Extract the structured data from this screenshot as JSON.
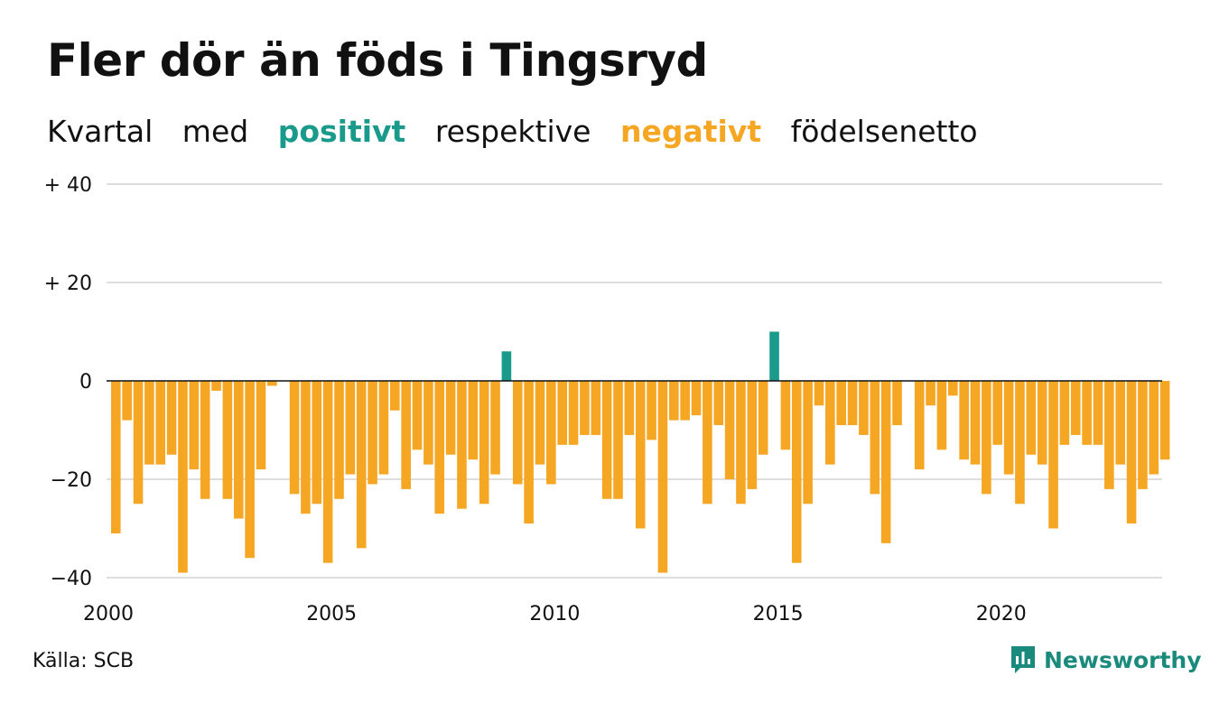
{
  "title": "Fler dör än föds i Tingsryd",
  "subtitle": {
    "w1": "Kvartal",
    "w2": "med",
    "positive": "positivt",
    "w4": "respektive",
    "negative": "negativt",
    "w6": "födelsenetto"
  },
  "source": "Källa: SCB",
  "brand": "Newsworthy",
  "colors": {
    "positive": "#1a9a8a",
    "negative": "#f5a623",
    "grid": "#dddddd",
    "zero": "#111111",
    "brand": "#1a8a7c"
  },
  "chart_data": {
    "type": "bar",
    "title": "Fler dör än föds i Tingsryd",
    "xlabel": "",
    "ylabel": "",
    "ylim": [
      -40,
      40
    ],
    "y_ticks": [
      {
        "value": 40,
        "label": "+ 40"
      },
      {
        "value": 20,
        "label": "+ 20"
      },
      {
        "value": 0,
        "label": "0"
      },
      {
        "value": -20,
        "label": "−20"
      },
      {
        "value": -40,
        "label": "−40"
      }
    ],
    "x_ticks": [
      {
        "value": 2000,
        "label": "2000"
      },
      {
        "value": 2005,
        "label": "2005"
      },
      {
        "value": 2010,
        "label": "2010"
      },
      {
        "value": 2015,
        "label": "2015"
      },
      {
        "value": 2020,
        "label": "2020"
      }
    ],
    "grid": true,
    "start_quarter": "2000K1",
    "values": [
      -31,
      -8,
      -25,
      -17,
      -17,
      -15,
      -39,
      -18,
      -24,
      -2,
      -24,
      -28,
      -36,
      -18,
      -1,
      0,
      -23,
      -27,
      -25,
      -37,
      -24,
      -19,
      -34,
      -21,
      -19,
      -6,
      -22,
      -14,
      -17,
      -27,
      -15,
      -26,
      -16,
      -25,
      -19,
      6,
      -21,
      -29,
      -17,
      -21,
      -13,
      -13,
      -11,
      -11,
      -24,
      -24,
      -11,
      -30,
      -12,
      -39,
      -8,
      -8,
      -7,
      -25,
      -9,
      -20,
      -25,
      -22,
      -15,
      10,
      -14,
      -37,
      -25,
      -5,
      -17,
      -9,
      -9,
      -11,
      -23,
      -33,
      -9,
      0,
      -18,
      -5,
      -14,
      -3,
      -16,
      -17,
      -23,
      -13,
      -19,
      -25,
      -15,
      -17,
      -30,
      -13,
      -11,
      -13,
      -13,
      -22,
      -17,
      -29,
      -22,
      -19,
      -16
    ]
  }
}
